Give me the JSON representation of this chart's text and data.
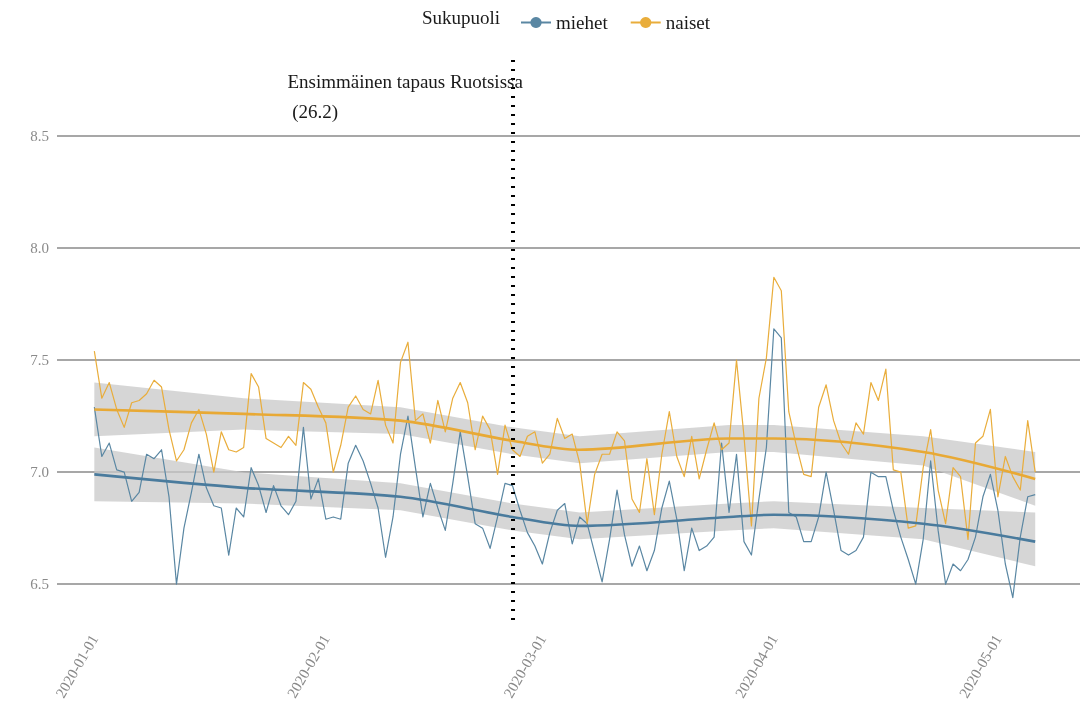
{
  "chart_data": {
    "type": "line",
    "legend_title": "Sukupuoli",
    "legend": "top",
    "grid": "y",
    "marker": "none",
    "x": [
      "2020-01-01",
      "2020-01-02",
      "2020-01-03",
      "2020-01-04",
      "2020-01-05",
      "2020-01-06",
      "2020-01-07",
      "2020-01-08",
      "2020-01-09",
      "2020-01-10",
      "2020-01-11",
      "2020-01-12",
      "2020-01-13",
      "2020-01-14",
      "2020-01-15",
      "2020-01-16",
      "2020-01-17",
      "2020-01-18",
      "2020-01-19",
      "2020-01-20",
      "2020-01-21",
      "2020-01-22",
      "2020-01-23",
      "2020-01-24",
      "2020-01-25",
      "2020-01-26",
      "2020-01-27",
      "2020-01-28",
      "2020-01-29",
      "2020-01-30",
      "2020-01-31",
      "2020-02-01",
      "2020-02-02",
      "2020-02-03",
      "2020-02-04",
      "2020-02-05",
      "2020-02-06",
      "2020-02-07",
      "2020-02-08",
      "2020-02-09",
      "2020-02-10",
      "2020-02-11",
      "2020-02-12",
      "2020-02-13",
      "2020-02-14",
      "2020-02-15",
      "2020-02-16",
      "2020-02-17",
      "2020-02-18",
      "2020-02-19",
      "2020-02-20",
      "2020-02-21",
      "2020-02-22",
      "2020-02-23",
      "2020-02-24",
      "2020-02-25",
      "2020-02-26",
      "2020-02-27",
      "2020-02-28",
      "2020-02-29",
      "2020-03-01",
      "2020-03-02",
      "2020-03-03",
      "2020-03-04",
      "2020-03-05",
      "2020-03-06",
      "2020-03-07",
      "2020-03-08",
      "2020-03-09",
      "2020-03-10",
      "2020-03-11",
      "2020-03-12",
      "2020-03-13",
      "2020-03-14",
      "2020-03-15",
      "2020-03-16",
      "2020-03-17",
      "2020-03-18",
      "2020-03-19",
      "2020-03-20",
      "2020-03-21",
      "2020-03-22",
      "2020-03-23",
      "2020-03-24",
      "2020-03-25",
      "2020-03-26",
      "2020-03-27",
      "2020-03-28",
      "2020-03-29",
      "2020-03-30",
      "2020-03-31",
      "2020-04-01",
      "2020-04-02",
      "2020-04-03",
      "2020-04-04",
      "2020-04-05",
      "2020-04-06",
      "2020-04-07",
      "2020-04-08",
      "2020-04-09",
      "2020-04-10",
      "2020-04-11",
      "2020-04-12",
      "2020-04-13",
      "2020-04-14",
      "2020-04-15",
      "2020-04-16",
      "2020-04-17",
      "2020-04-18",
      "2020-04-19",
      "2020-04-20",
      "2020-04-21",
      "2020-04-22",
      "2020-04-23",
      "2020-04-24",
      "2020-04-25",
      "2020-04-26",
      "2020-04-27",
      "2020-04-28",
      "2020-04-29",
      "2020-04-30",
      "2020-05-01",
      "2020-05-02",
      "2020-05-03",
      "2020-05-04",
      "2020-05-05",
      "2020-05-06"
    ],
    "series": [
      {
        "name": "miehet",
        "color": "#5a87a3",
        "values": [
          7.29,
          7.07,
          7.13,
          7.01,
          7.0,
          6.87,
          6.91,
          7.08,
          7.06,
          7.1,
          6.89,
          6.5,
          6.75,
          6.91,
          7.08,
          6.93,
          6.85,
          6.84,
          6.63,
          6.84,
          6.8,
          7.02,
          6.94,
          6.82,
          6.94,
          6.85,
          6.81,
          6.87,
          7.2,
          6.88,
          6.97,
          6.79,
          6.8,
          6.79,
          7.04,
          7.12,
          7.05,
          6.95,
          6.84,
          6.62,
          6.8,
          7.08,
          7.25,
          7.02,
          6.8,
          6.95,
          6.84,
          6.74,
          6.95,
          7.18,
          6.98,
          6.77,
          6.75,
          6.66,
          6.8,
          6.95,
          6.94,
          6.83,
          6.73,
          6.67,
          6.59,
          6.73,
          6.83,
          6.86,
          6.68,
          6.8,
          6.77,
          6.64,
          6.51,
          6.7,
          6.92,
          6.72,
          6.58,
          6.67,
          6.56,
          6.65,
          6.84,
          6.96,
          6.79,
          6.56,
          6.75,
          6.65,
          6.67,
          6.71,
          7.13,
          6.82,
          7.08,
          6.69,
          6.63,
          6.88,
          7.11,
          7.64,
          7.6,
          6.82,
          6.8,
          6.69,
          6.69,
          6.8,
          7.0,
          6.83,
          6.65,
          6.63,
          6.65,
          6.71,
          7.0,
          6.98,
          6.98,
          6.83,
          6.71,
          6.61,
          6.5,
          6.7,
          7.05,
          6.74,
          6.5,
          6.59,
          6.56,
          6.61,
          6.71,
          6.89,
          6.99,
          6.83,
          6.59,
          6.44,
          6.71,
          6.89,
          6.9
        ]
      },
      {
        "name": "naiset",
        "color": "#e9ad3b",
        "values": [
          7.54,
          7.33,
          7.4,
          7.28,
          7.2,
          7.31,
          7.32,
          7.35,
          7.41,
          7.38,
          7.19,
          7.05,
          7.1,
          7.22,
          7.28,
          7.17,
          7.0,
          7.18,
          7.1,
          7.09,
          7.11,
          7.44,
          7.38,
          7.15,
          7.13,
          7.11,
          7.16,
          7.12,
          7.4,
          7.37,
          7.29,
          7.22,
          7.0,
          7.12,
          7.29,
          7.34,
          7.28,
          7.26,
          7.41,
          7.21,
          7.13,
          7.49,
          7.58,
          7.23,
          7.26,
          7.13,
          7.32,
          7.18,
          7.33,
          7.4,
          7.31,
          7.1,
          7.25,
          7.19,
          6.99,
          7.21,
          7.1,
          7.07,
          7.16,
          7.18,
          7.04,
          7.08,
          7.24,
          7.15,
          7.17,
          7.04,
          6.77,
          6.99,
          7.08,
          7.08,
          7.18,
          7.14,
          6.88,
          6.82,
          7.06,
          6.81,
          7.08,
          7.27,
          7.07,
          6.98,
          7.16,
          6.97,
          7.1,
          7.22,
          7.1,
          7.13,
          7.5,
          7.16,
          6.76,
          7.33,
          7.51,
          7.87,
          7.81,
          7.27,
          7.12,
          6.99,
          6.98,
          7.29,
          7.39,
          7.23,
          7.13,
          7.08,
          7.22,
          7.17,
          7.4,
          7.32,
          7.46,
          7.01,
          7.0,
          6.75,
          6.76,
          7.02,
          7.19,
          6.92,
          6.77,
          7.02,
          6.98,
          6.7,
          7.13,
          7.16,
          7.28,
          6.89,
          7.07,
          6.98,
          6.92,
          7.23,
          7.0
        ]
      },
      {
        "color": "#4a7b9d",
        "x": [
          "2020-01-01",
          "2020-01-21",
          "2020-02-11",
          "2020-02-26",
          "2020-03-06",
          "2020-03-26",
          "2020-04-01",
          "2020-04-21",
          "2020-05-06"
        ],
        "values": [
          6.99,
          6.93,
          6.89,
          6.8,
          6.76,
          6.8,
          6.81,
          6.77,
          6.69
        ],
        "lower": [
          6.87,
          6.86,
          6.83,
          6.74,
          6.7,
          6.74,
          6.75,
          6.7,
          6.58
        ],
        "upper": [
          7.11,
          7.0,
          6.95,
          6.86,
          6.82,
          6.86,
          6.87,
          6.84,
          6.82
        ]
      },
      {
        "color": "#e8a935",
        "x": [
          "2020-01-01",
          "2020-01-21",
          "2020-02-11",
          "2020-02-26",
          "2020-03-06",
          "2020-03-26",
          "2020-04-01",
          "2020-04-21",
          "2020-05-06"
        ],
        "values": [
          7.28,
          7.26,
          7.23,
          7.14,
          7.1,
          7.15,
          7.15,
          7.09,
          6.97
        ],
        "lower": [
          7.16,
          7.19,
          7.17,
          7.08,
          7.04,
          7.09,
          7.09,
          7.03,
          6.85
        ],
        "upper": [
          7.4,
          7.33,
          7.29,
          7.2,
          7.16,
          7.21,
          7.21,
          7.16,
          7.09
        ]
      }
    ],
    "ref_lines": [
      {
        "axis": "x",
        "value": "2020-02-26",
        "label": "Ensimmäinen tapaus Ruotsissa (26.2)",
        "color": "#000000",
        "line_style": "dotted"
      }
    ],
    "xlim": [
      "2019-12-27",
      "2020-05-12"
    ],
    "xticks": [
      "2020-01-01",
      "2020-02-01",
      "2020-03-01",
      "2020-04-01",
      "2020-05-01"
    ],
    "ylim": [
      6.34,
      8.84
    ],
    "yticks": [
      {
        "value": 6.5,
        "label": "6.5"
      },
      {
        "value": 7,
        "label": "7.0"
      },
      {
        "value": 7.5,
        "label": "7.5"
      },
      {
        "value": 8,
        "label": "8.0"
      },
      {
        "value": 8.5,
        "label": "8.5"
      }
    ]
  }
}
